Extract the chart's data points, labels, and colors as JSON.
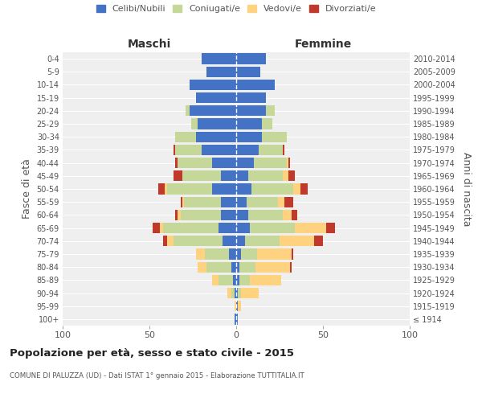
{
  "age_groups": [
    "100+",
    "95-99",
    "90-94",
    "85-89",
    "80-84",
    "75-79",
    "70-74",
    "65-69",
    "60-64",
    "55-59",
    "50-54",
    "45-49",
    "40-44",
    "35-39",
    "30-34",
    "25-29",
    "20-24",
    "15-19",
    "10-14",
    "5-9",
    "0-4"
  ],
  "birth_years": [
    "≤ 1914",
    "1915-1919",
    "1920-1924",
    "1925-1929",
    "1930-1934",
    "1935-1939",
    "1940-1944",
    "1945-1949",
    "1950-1954",
    "1955-1959",
    "1960-1964",
    "1965-1969",
    "1970-1974",
    "1975-1979",
    "1980-1984",
    "1985-1989",
    "1990-1994",
    "1995-1999",
    "2000-2004",
    "2005-2009",
    "2010-2014"
  ],
  "males": {
    "celibi": [
      1,
      0,
      1,
      2,
      3,
      4,
      8,
      10,
      9,
      9,
      14,
      9,
      14,
      20,
      23,
      22,
      27,
      23,
      27,
      17,
      20
    ],
    "coniugati": [
      0,
      0,
      2,
      8,
      14,
      14,
      28,
      32,
      23,
      21,
      26,
      22,
      20,
      15,
      12,
      4,
      2,
      0,
      0,
      0,
      0
    ],
    "vedovi": [
      0,
      1,
      2,
      4,
      5,
      5,
      4,
      2,
      2,
      1,
      1,
      0,
      0,
      0,
      0,
      0,
      0,
      0,
      0,
      0,
      0
    ],
    "divorziati": [
      0,
      0,
      0,
      0,
      0,
      0,
      2,
      4,
      1,
      1,
      4,
      5,
      1,
      1,
      0,
      0,
      0,
      0,
      0,
      0,
      0
    ]
  },
  "females": {
    "nubili": [
      1,
      1,
      1,
      2,
      2,
      3,
      5,
      8,
      7,
      6,
      9,
      7,
      10,
      13,
      15,
      15,
      17,
      17,
      22,
      14,
      17
    ],
    "coniugate": [
      0,
      0,
      2,
      6,
      9,
      9,
      20,
      26,
      20,
      18,
      24,
      20,
      19,
      14,
      14,
      6,
      5,
      0,
      0,
      0,
      0
    ],
    "vedove": [
      0,
      2,
      10,
      18,
      20,
      20,
      20,
      18,
      5,
      4,
      4,
      3,
      1,
      0,
      0,
      0,
      0,
      0,
      0,
      0,
      0
    ],
    "divorziate": [
      0,
      0,
      0,
      0,
      1,
      1,
      5,
      5,
      3,
      5,
      4,
      4,
      1,
      1,
      0,
      0,
      0,
      0,
      0,
      0,
      0
    ]
  },
  "colors": {
    "celibi": "#4472C4",
    "coniugati": "#C5D89A",
    "vedovi": "#FFD27F",
    "divorziati": "#C0392B"
  },
  "xlim": 100,
  "title": "Popolazione per età, sesso e stato civile - 2015",
  "subtitle": "COMUNE DI PALUZZA (UD) - Dati ISTAT 1° gennaio 2015 - Elaborazione TUTTITALIA.IT",
  "ylabel_left": "Fasce di età",
  "ylabel_right": "Anni di nascita",
  "xlabel_left": "Maschi",
  "xlabel_right": "Femmine",
  "legend_labels": [
    "Celibi/Nubili",
    "Coniugati/e",
    "Vedovi/e",
    "Divorziati/e"
  ],
  "background_color": "#ffffff",
  "plot_bg_color": "#efefef"
}
